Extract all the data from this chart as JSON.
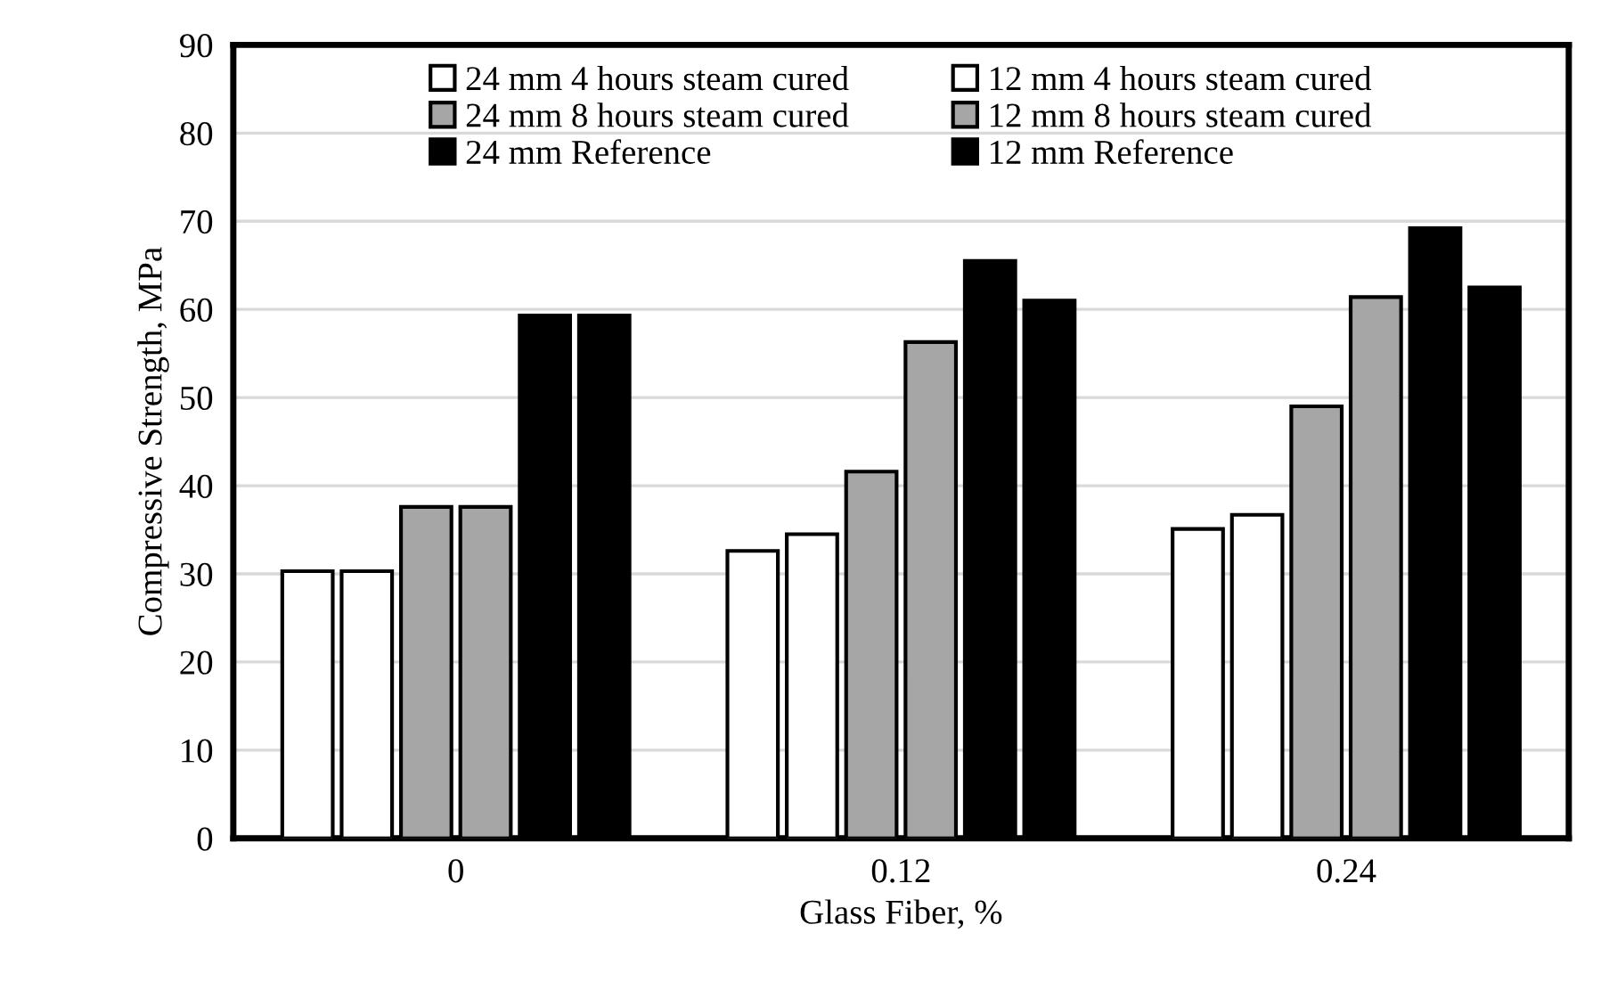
{
  "chart_data": {
    "type": "bar",
    "xlabel": "Glass Fiber, %",
    "ylabel": "Compressive Strength, MPa",
    "categories": [
      "0",
      "0.12",
      "0.24"
    ],
    "series": [
      {
        "name": "24 mm 4 hours steam cured",
        "color": "#ffffff",
        "values": [
          30.3,
          32.6,
          35.1
        ]
      },
      {
        "name": "12 mm 4 hours steam cured",
        "color": "#ffffff",
        "values": [
          30.3,
          34.5,
          36.7
        ]
      },
      {
        "name": "24 mm 8 hours steam cured",
        "color": "#a6a6a6",
        "values": [
          37.6,
          41.6,
          49.0
        ]
      },
      {
        "name": "12 mm 8 hours steam cured",
        "color": "#a6a6a6",
        "values": [
          37.6,
          56.3,
          61.4
        ]
      },
      {
        "name": "24 mm Reference",
        "color": "#000000",
        "values": [
          59.3,
          65.5,
          69.2
        ]
      },
      {
        "name": "12 mm Reference",
        "color": "#000000",
        "values": [
          59.3,
          61.0,
          62.5
        ]
      }
    ],
    "ylim": [
      0,
      90
    ],
    "yticks": [
      0,
      10,
      20,
      30,
      40,
      50,
      60,
      70,
      80,
      90
    ],
    "grid": "y",
    "legend": "top"
  }
}
